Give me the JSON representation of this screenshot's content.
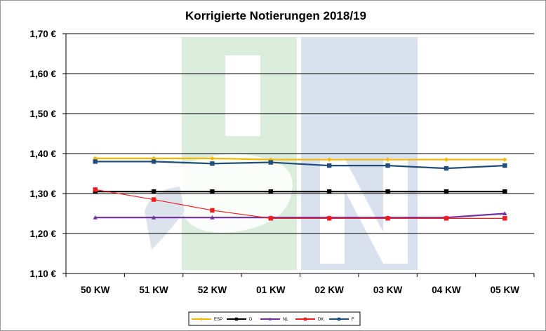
{
  "chart_data": {
    "type": "line",
    "title": "Korrigierte Notierungen 2018/19",
    "xlabel": "",
    "ylabel": "",
    "categories": [
      "50 KW",
      "51 KW",
      "52 KW",
      "01 KW",
      "02 KW",
      "03 KW",
      "04 KW",
      "05 KW"
    ],
    "ylim": [
      1.1,
      1.7
    ],
    "yticks": [
      1.1,
      1.2,
      1.3,
      1.4,
      1.5,
      1.6,
      1.7
    ],
    "ytick_labels": [
      "1,10 €",
      "1,20 €",
      "1,30 €",
      "1,40 €",
      "1,50 €",
      "1,60 €",
      "1,70 €"
    ],
    "grid": true,
    "legend_position": "bottom",
    "watermark": "ISN",
    "series": [
      {
        "name": "ESP",
        "color": "#f5b800",
        "marker": "diamond",
        "values": [
          1.388,
          1.388,
          1.388,
          1.385,
          1.385,
          1.385,
          1.385,
          1.385
        ]
      },
      {
        "name": "D",
        "color": "#000000",
        "marker": "square",
        "values": [
          1.305,
          1.305,
          1.305,
          1.305,
          1.305,
          1.305,
          1.305,
          1.305
        ]
      },
      {
        "name": "NL",
        "color": "#7030a0",
        "marker": "triangle",
        "values": [
          1.24,
          1.24,
          1.24,
          1.24,
          1.24,
          1.24,
          1.24,
          1.25
        ]
      },
      {
        "name": "DK",
        "color": "#ee1c1c",
        "marker": "square",
        "values": [
          1.31,
          1.285,
          1.258,
          1.238,
          1.238,
          1.238,
          1.238,
          1.238
        ]
      },
      {
        "name": "F",
        "color": "#1f4e79",
        "marker": "square",
        "values": [
          1.38,
          1.38,
          1.375,
          1.378,
          1.37,
          1.37,
          1.363,
          1.37
        ]
      }
    ]
  }
}
